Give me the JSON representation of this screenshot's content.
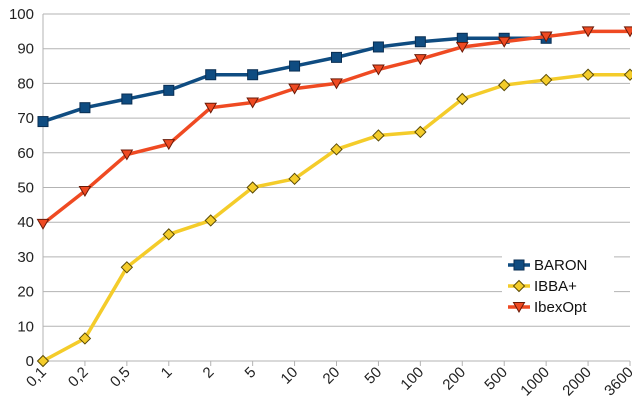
{
  "chart_data": {
    "type": "line",
    "title": "",
    "xlabel": "",
    "ylabel": "",
    "categories": [
      "0,1",
      "0,2",
      "0,5",
      "1",
      "2",
      "5",
      "10",
      "20",
      "50",
      "100",
      "200",
      "500",
      "1000",
      "2000",
      "3600"
    ],
    "ylim": [
      0,
      100
    ],
    "yticks": [
      0,
      10,
      20,
      30,
      40,
      50,
      60,
      70,
      80,
      90,
      100
    ],
    "grid": true,
    "legend_position": "bottom-right",
    "series": [
      {
        "name": "BARON",
        "color": "#0f4c81",
        "marker": "square",
        "marker_fill": "#0f4c81",
        "values": [
          69,
          73,
          75.5,
          78,
          82.5,
          82.5,
          85,
          87.5,
          90.5,
          92,
          93,
          93,
          93,
          null,
          null
        ]
      },
      {
        "name": "IBBA+",
        "color": "#f4cc2a",
        "marker": "diamond",
        "marker_fill": "#f4cc2a",
        "values": [
          0,
          6.5,
          27,
          36.5,
          40.5,
          50,
          52.5,
          61,
          65,
          66,
          75.5,
          79.5,
          81,
          82.5,
          82.5
        ]
      },
      {
        "name": "IbexOpt",
        "color": "#ef4a22",
        "marker": "triangle-down",
        "marker_fill": "#ef4a22",
        "values": [
          39.5,
          49,
          59.5,
          62.5,
          73,
          74.5,
          78.5,
          80,
          84,
          87,
          90.5,
          92,
          93.5,
          95,
          95
        ]
      }
    ]
  }
}
